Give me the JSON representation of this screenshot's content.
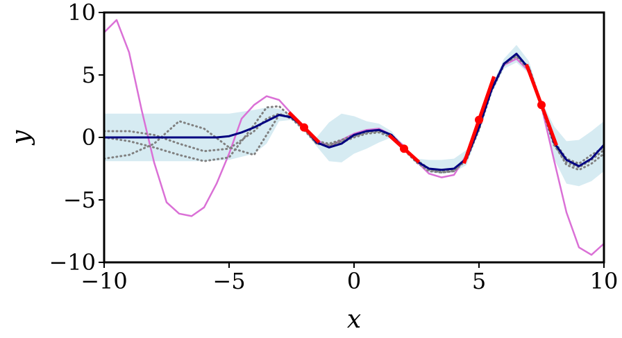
{
  "chart_data": {
    "type": "line",
    "title": "",
    "xlabel": "x",
    "ylabel": "y",
    "xlim": [
      -10,
      10
    ],
    "ylim": [
      -10,
      10
    ],
    "x_ticks": [
      -10,
      -5,
      0,
      5,
      10
    ],
    "y_ticks": [
      -10,
      -5,
      0,
      5,
      10
    ],
    "x_tick_labels": [
      "−10",
      "−5",
      "0",
      "5",
      "10"
    ],
    "y_tick_labels": [
      "−10",
      "−5",
      "0",
      "5",
      "10"
    ],
    "grid": false,
    "legend": "none",
    "colors": {
      "true_function": "#da70d6",
      "posterior_mean": "#000080",
      "confidence_band": "#add8e6",
      "samples": "#808080",
      "observations": "#ff0000"
    },
    "series": [
      {
        "kind": "true_function",
        "x": [
          -10,
          -9.5,
          -9,
          -8.5,
          -8,
          -7.5,
          -7,
          -6.5,
          -6,
          -5.5,
          -5,
          -4.5,
          -4,
          -3.5,
          -3,
          -2.5,
          -2,
          -1.5,
          -1,
          -0.5,
          0,
          0.5,
          1,
          1.5,
          2,
          2.5,
          3,
          3.5,
          4,
          4.5,
          5,
          5.5,
          6,
          6.5,
          7,
          7.5,
          8,
          8.5,
          9,
          9.5,
          10
        ],
        "y": [
          8.4,
          9.4,
          6.8,
          2.2,
          -2.0,
          -5.2,
          -6.1,
          -6.3,
          -5.6,
          -3.7,
          -1.3,
          1.5,
          2.6,
          3.3,
          3.0,
          1.9,
          0.9,
          -0.2,
          -0.7,
          -0.2,
          0.3,
          0.6,
          0.7,
          0.2,
          -0.7,
          -1.9,
          -2.9,
          -3.2,
          -3.0,
          -1.4,
          1.3,
          4.0,
          5.8,
          6.3,
          5.3,
          2.5,
          -1.8,
          -6.0,
          -8.8,
          -9.4,
          -8.5
        ]
      },
      {
        "kind": "posterior_mean",
        "x": [
          -10,
          -9,
          -8,
          -7,
          -6,
          -5.5,
          -5,
          -4.5,
          -4,
          -3.5,
          -3,
          -2.5,
          -2,
          -1.5,
          -1,
          -0.5,
          0,
          0.5,
          1,
          1.5,
          2,
          2.5,
          3,
          3.5,
          4,
          4.5,
          5,
          5.5,
          6,
          6.5,
          7,
          7.5,
          8,
          8.5,
          9,
          9.5,
          10
        ],
        "y": [
          0,
          0,
          0,
          0,
          0,
          0,
          0.1,
          0.4,
          0.8,
          1.3,
          1.8,
          1.6,
          0.8,
          -0.4,
          -0.8,
          -0.5,
          0.2,
          0.5,
          0.6,
          0.2,
          -0.9,
          -1.9,
          -2.5,
          -2.6,
          -2.5,
          -1.7,
          0.8,
          3.8,
          5.9,
          6.7,
          5.5,
          2.6,
          -0.4,
          -1.8,
          -2.3,
          -1.7,
          -0.6
        ]
      },
      {
        "kind": "sample",
        "x": [
          -10,
          -9,
          -8,
          -7,
          -6,
          -5,
          -4,
          -3.5,
          -3,
          -2.5,
          -2,
          -1.5,
          -1,
          -0.5,
          0,
          0.5,
          1,
          1.5,
          2,
          2.5,
          3,
          3.5,
          4,
          4.5,
          5,
          5.5,
          6,
          6.5,
          7,
          7.5,
          8,
          8.5,
          9,
          9.5,
          10
        ],
        "y": [
          0.5,
          0.5,
          0.2,
          -0.5,
          -1.1,
          -0.9,
          0.5,
          1.5,
          1.9,
          1.5,
          0.6,
          -0.5,
          -0.6,
          -0.3,
          0.1,
          0.4,
          0.5,
          0.1,
          -0.9,
          -1.9,
          -2.6,
          -2.8,
          -2.7,
          -1.7,
          0.7,
          3.9,
          5.9,
          6.5,
          5.4,
          2.4,
          -0.6,
          -2.0,
          -2.4,
          -1.8,
          -1.0
        ]
      },
      {
        "kind": "sample",
        "x": [
          -10,
          -9,
          -8,
          -7,
          -6,
          -5,
          -4,
          -3.5,
          -3,
          -2.5,
          -2,
          -1.5,
          -1,
          -0.5,
          0,
          0.5,
          1,
          1.5,
          2,
          2.5,
          3,
          3.5,
          4,
          4.5,
          5,
          5.5,
          6,
          6.5,
          7,
          7.5,
          8,
          8.5,
          9,
          9.5,
          10
        ],
        "y": [
          -1.7,
          -1.4,
          -0.5,
          1.3,
          0.7,
          -0.8,
          -1.4,
          0.2,
          1.8,
          1.7,
          0.8,
          -0.3,
          -0.5,
          -0.2,
          0.2,
          0.5,
          0.6,
          0.2,
          -0.8,
          -1.8,
          -2.5,
          -2.7,
          -2.6,
          -1.6,
          0.8,
          3.9,
          5.9,
          6.5,
          5.5,
          2.6,
          -0.3,
          -1.7,
          -2.1,
          -1.4,
          -0.8
        ]
      },
      {
        "kind": "sample",
        "x": [
          -10,
          -9,
          -8,
          -7,
          -6,
          -5,
          -4,
          -3.5,
          -3,
          -2.5,
          -2,
          -1.5,
          -1,
          -0.5,
          0,
          0.5,
          1,
          1.5,
          2,
          2.5,
          3,
          3.5,
          4,
          4.5,
          5,
          5.5,
          6,
          6.5,
          7,
          7.5,
          8,
          8.5,
          9,
          9.5,
          10
        ],
        "y": [
          0,
          -0.3,
          -0.8,
          -1.4,
          -1.9,
          -1.6,
          1.0,
          2.4,
          2.5,
          1.6,
          0.7,
          -0.5,
          -0.7,
          -0.4,
          0.0,
          0.3,
          0.4,
          0.0,
          -1.0,
          -2.0,
          -2.7,
          -2.8,
          -2.7,
          -1.8,
          0.6,
          3.7,
          5.8,
          6.6,
          5.6,
          2.7,
          -0.5,
          -2.2,
          -2.6,
          -2.1,
          -1.3
        ]
      }
    ],
    "band": {
      "x": [
        -10,
        -8,
        -6,
        -5,
        -4,
        -3.5,
        -3,
        -2.5,
        -2,
        -1.5,
        -1,
        -0.5,
        0,
        0.5,
        1,
        1.5,
        2,
        2.5,
        3,
        3.5,
        4,
        4.5,
        5,
        5.5,
        6,
        6.5,
        7,
        7.5,
        8,
        8.5,
        9,
        9.5,
        10
      ],
      "lower": [
        -1.9,
        -1.9,
        -1.9,
        -1.8,
        -1.3,
        -0.5,
        1.3,
        1.4,
        0.6,
        -0.7,
        -1.9,
        -2.0,
        -1.3,
        -0.9,
        -0.4,
        0.0,
        -1.1,
        -2.1,
        -2.8,
        -2.9,
        -2.8,
        -2.2,
        0.5,
        3.5,
        5.5,
        6.0,
        5.1,
        2.3,
        -1.7,
        -3.7,
        -3.9,
        -3.5,
        -2.7
      ],
      "upper": [
        1.9,
        1.9,
        1.9,
        1.9,
        2.2,
        2.4,
        2.3,
        1.8,
        1.0,
        0.0,
        1.2,
        1.9,
        1.7,
        1.3,
        1.1,
        0.5,
        -0.7,
        -1.7,
        -1.8,
        -1.8,
        -1.7,
        -1.0,
        1.1,
        4.1,
        6.3,
        7.4,
        6.1,
        2.9,
        0.9,
        -0.3,
        -0.2,
        0.5,
        1.3
      ]
    },
    "observations": [
      {
        "x": -2.0,
        "y": 0.8,
        "slope": -2.0
      },
      {
        "x": 2.0,
        "y": -0.9,
        "slope": -1.8
      },
      {
        "x": 5.0,
        "y": 1.4,
        "slope": 5.8
      },
      {
        "x": 7.5,
        "y": 2.6,
        "slope": -5.4
      }
    ]
  }
}
